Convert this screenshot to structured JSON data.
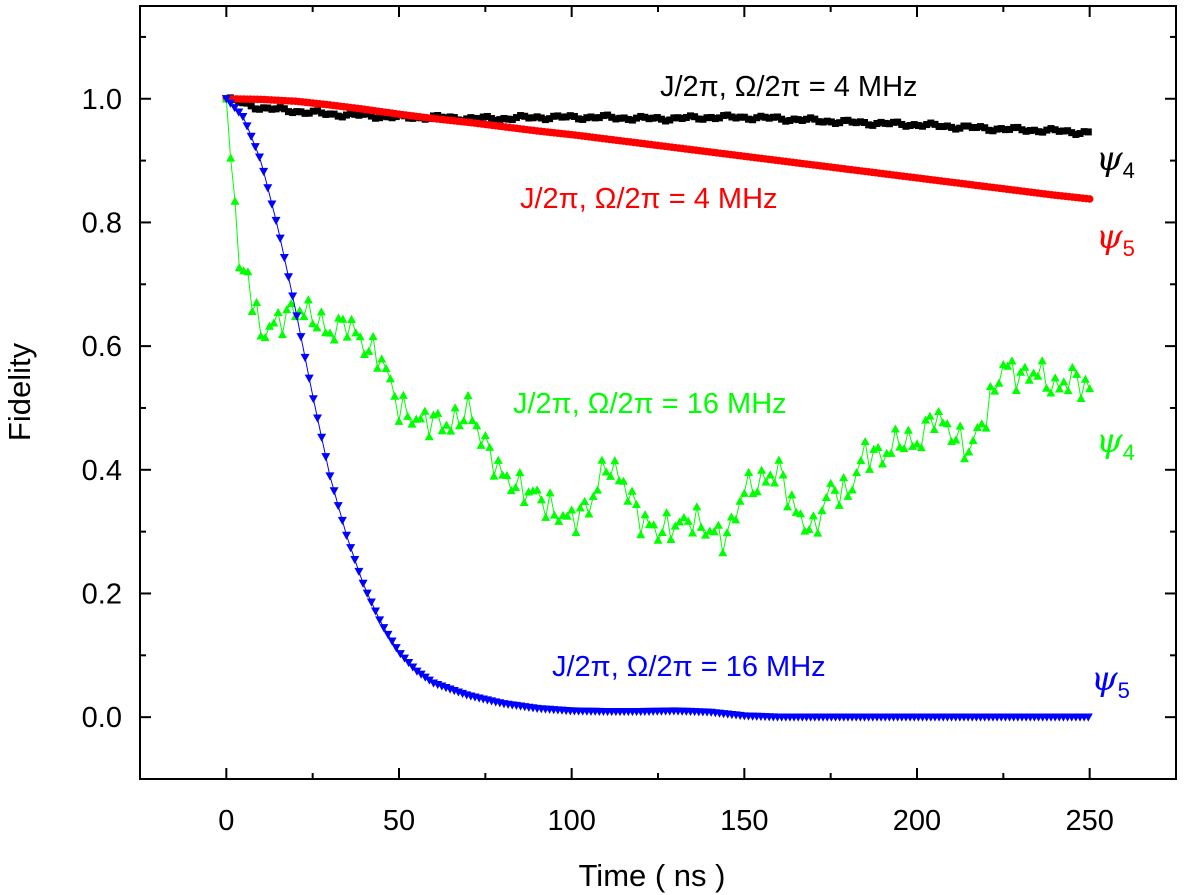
{
  "chart_data": {
    "type": "scatter",
    "title": "",
    "xlabel": "Time ( ns )",
    "ylabel": "Fidelity",
    "xlim": [
      -25,
      275
    ],
    "ylim": [
      -0.1,
      1.15
    ],
    "xticks": [
      0,
      50,
      100,
      150,
      200,
      250
    ],
    "xtick_labels": [
      "0",
      "50",
      "100",
      "150",
      "200",
      "250"
    ],
    "yticks": [
      0.0,
      0.2,
      0.4,
      0.6,
      0.8,
      1.0
    ],
    "ytick_labels": [
      "0.0",
      "0.2",
      "0.4",
      "0.6",
      "0.8",
      "1.0"
    ],
    "grid": false,
    "series": [
      {
        "name": "psi4, J/2pi = Omega/2pi = 4 MHz",
        "color": "#000000",
        "marker": "square",
        "x": [
          0,
          10,
          20,
          30,
          40,
          50,
          60,
          70,
          80,
          90,
          100,
          110,
          120,
          130,
          140,
          150,
          160,
          170,
          180,
          190,
          200,
          210,
          220,
          230,
          240,
          250
        ],
        "y": [
          1.0,
          0.985,
          0.98,
          0.975,
          0.973,
          0.97,
          0.97,
          0.968,
          0.968,
          0.97,
          0.97,
          0.97,
          0.968,
          0.968,
          0.97,
          0.97,
          0.968,
          0.965,
          0.962,
          0.96,
          0.958,
          0.955,
          0.952,
          0.95,
          0.948,
          0.945
        ]
      },
      {
        "name": "psi5, J/2pi = Omega/2pi = 4 MHz",
        "color": "#ff0000",
        "marker": "circle",
        "x": [
          0,
          10,
          20,
          30,
          40,
          50,
          60,
          70,
          80,
          90,
          100,
          110,
          120,
          130,
          140,
          150,
          160,
          170,
          180,
          190,
          200,
          210,
          220,
          230,
          240,
          250
        ],
        "y": [
          1.0,
          0.999,
          0.996,
          0.99,
          0.983,
          0.975,
          0.968,
          0.962,
          0.955,
          0.948,
          0.942,
          0.935,
          0.928,
          0.921,
          0.914,
          0.907,
          0.9,
          0.893,
          0.886,
          0.879,
          0.872,
          0.865,
          0.858,
          0.851,
          0.844,
          0.838
        ]
      },
      {
        "name": "psi4, J/2pi = Omega/2pi = 16 MHz",
        "color": "#00ff00",
        "marker": "triangle-up",
        "x": [
          0,
          2,
          4,
          6,
          8,
          10,
          15,
          20,
          25,
          30,
          35,
          40,
          45,
          50,
          55,
          60,
          65,
          70,
          75,
          80,
          85,
          90,
          95,
          100,
          105,
          110,
          115,
          120,
          125,
          130,
          135,
          140,
          145,
          150,
          155,
          160,
          165,
          170,
          175,
          180,
          185,
          190,
          195,
          200,
          205,
          210,
          215,
          220,
          225,
          230,
          235,
          240,
          245,
          250
        ],
        "y": [
          1.0,
          0.88,
          0.7,
          0.73,
          0.66,
          0.62,
          0.64,
          0.66,
          0.65,
          0.62,
          0.64,
          0.6,
          0.58,
          0.5,
          0.48,
          0.48,
          0.47,
          0.5,
          0.44,
          0.39,
          0.37,
          0.36,
          0.33,
          0.32,
          0.34,
          0.41,
          0.38,
          0.32,
          0.3,
          0.31,
          0.32,
          0.3,
          0.29,
          0.37,
          0.38,
          0.4,
          0.33,
          0.3,
          0.37,
          0.36,
          0.43,
          0.42,
          0.45,
          0.44,
          0.49,
          0.46,
          0.43,
          0.49,
          0.57,
          0.55,
          0.56,
          0.53,
          0.55,
          0.53
        ]
      },
      {
        "name": "psi5, J/2pi = Omega/2pi = 16 MHz",
        "color": "#0000ff",
        "marker": "triangle-down",
        "x": [
          0,
          5,
          10,
          15,
          20,
          25,
          30,
          35,
          40,
          45,
          50,
          55,
          60,
          70,
          80,
          90,
          100,
          110,
          120,
          130,
          140,
          150,
          160,
          170,
          180,
          190,
          200,
          210,
          220,
          230,
          240,
          250
        ],
        "y": [
          1.0,
          0.97,
          0.9,
          0.79,
          0.66,
          0.52,
          0.39,
          0.29,
          0.21,
          0.15,
          0.105,
          0.075,
          0.055,
          0.035,
          0.022,
          0.014,
          0.01,
          0.009,
          0.009,
          0.01,
          0.008,
          0.002,
          0.0,
          0.0,
          0.0,
          0.0,
          0.0,
          0.0,
          0.0,
          0.0,
          0.0,
          0.0
        ]
      }
    ],
    "annotations": [
      {
        "text": "J/2π, Ω/2π = 4 MHz",
        "color": "#000000"
      },
      {
        "text": "J/2π, Ω/2π = 4 MHz",
        "color": "#ff0000"
      },
      {
        "text": "J/2π, Ω/2π = 16 MHz",
        "color": "#00ff00"
      },
      {
        "text": "J/2π, Ω/2π = 16 MHz",
        "color": "#0000ff"
      }
    ],
    "state_labels": [
      {
        "symbol": "ψ",
        "sub": "4",
        "color": "#000000"
      },
      {
        "symbol": "ψ",
        "sub": "5",
        "color": "#ff0000"
      },
      {
        "symbol": "ψ",
        "sub": "4",
        "color": "#00ff00"
      },
      {
        "symbol": "ψ",
        "sub": "5",
        "color": "#0000ff"
      }
    ]
  }
}
